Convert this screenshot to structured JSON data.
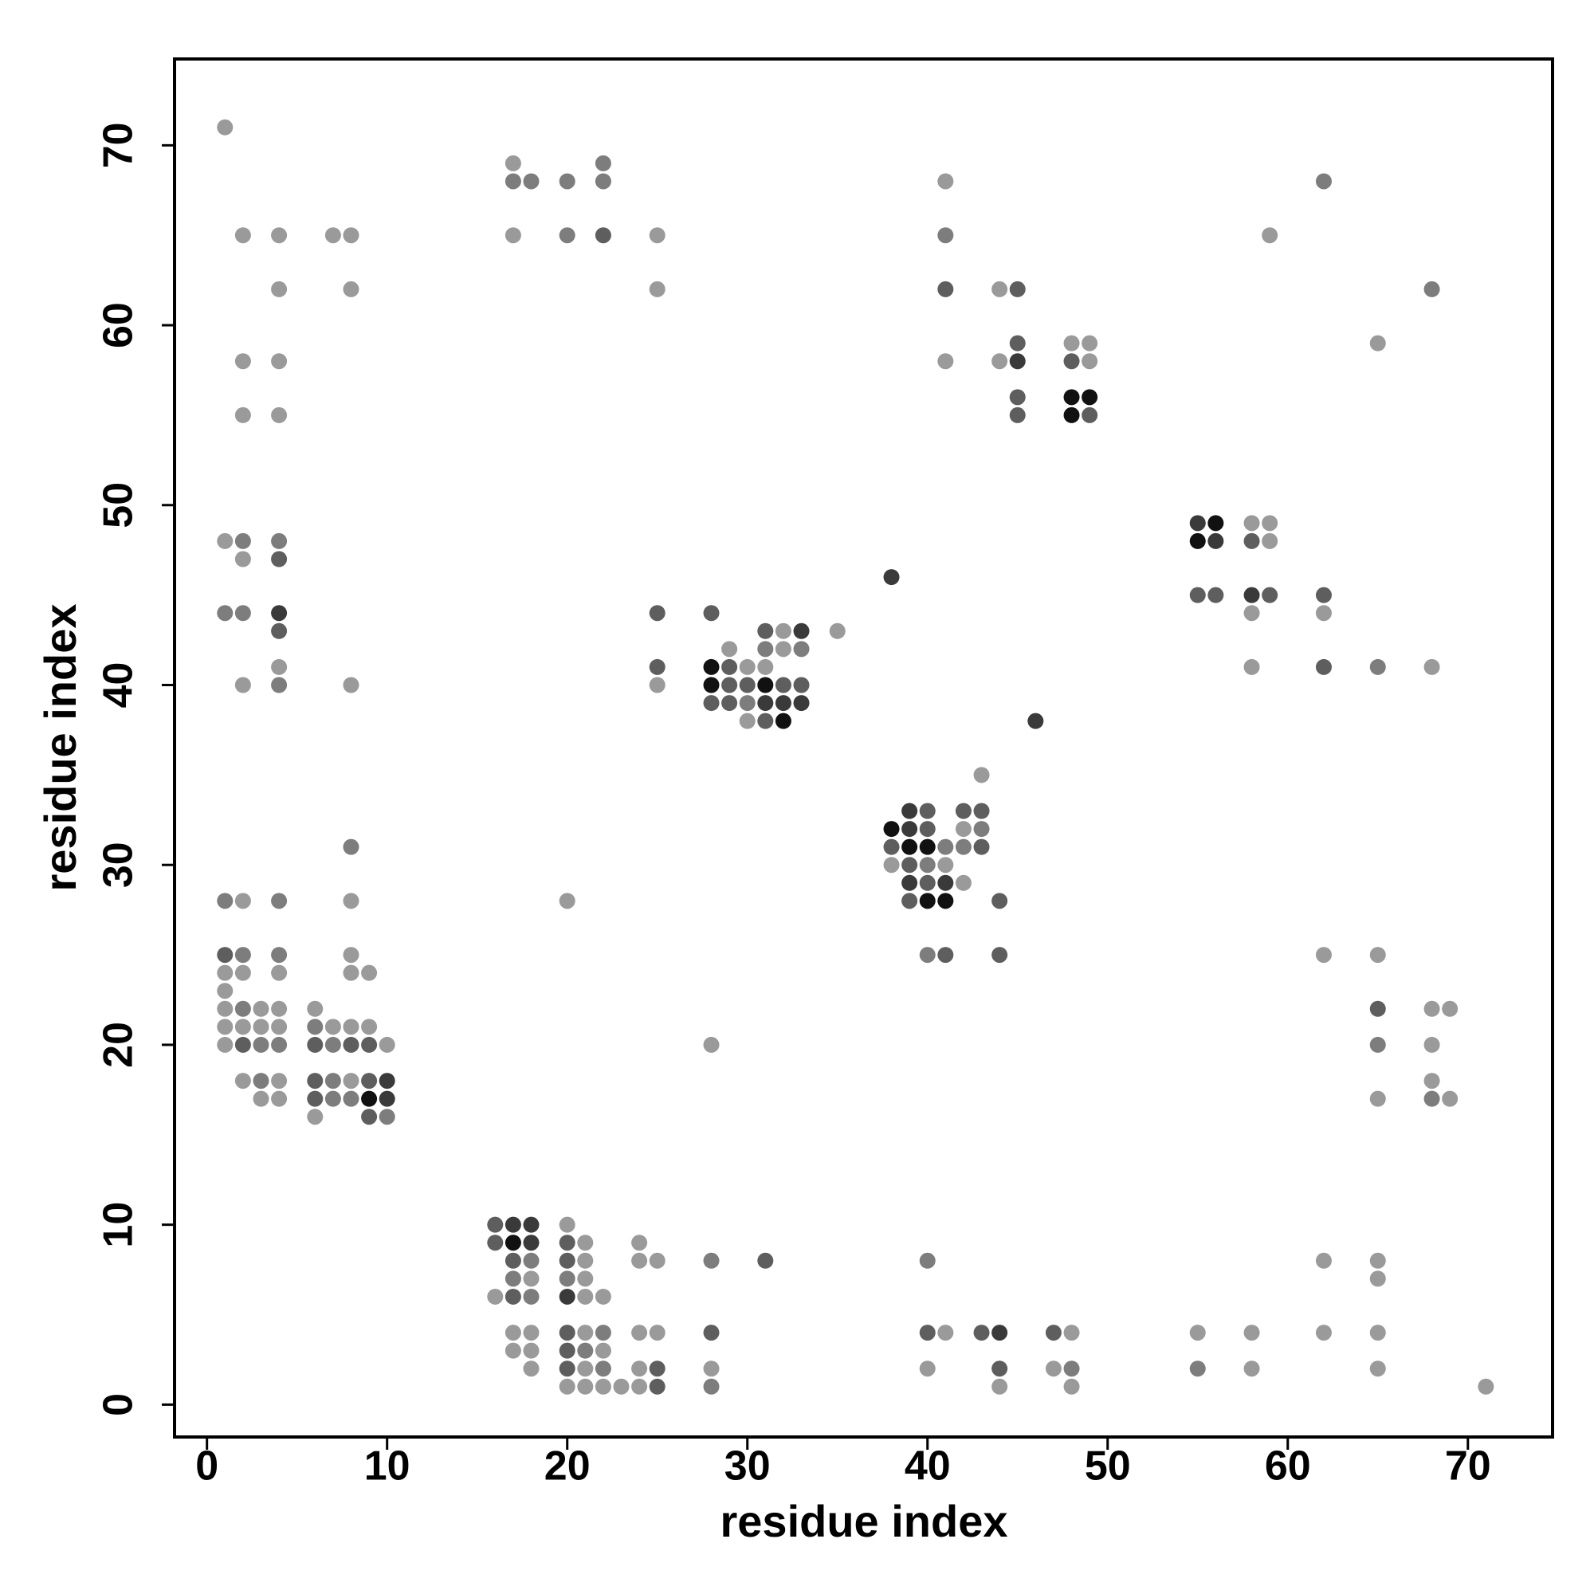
{
  "chart_data": {
    "type": "scatter",
    "xlabel": "residue index",
    "ylabel": "residue index",
    "xlim": [
      -1.8,
      74.7
    ],
    "ylim": [
      -1.8,
      74.8
    ],
    "xticks": [
      0,
      10,
      20,
      30,
      40,
      50,
      60,
      70
    ],
    "yticks": [
      0,
      10,
      20,
      30,
      40,
      50,
      60,
      70
    ],
    "grid": false,
    "series": [
      {
        "color": "#9a9a9a",
        "x": [
          1,
          2,
          4,
          7,
          8,
          4,
          8,
          2,
          4,
          2,
          4,
          1,
          2,
          4,
          2,
          8,
          2,
          8,
          8,
          1,
          2,
          4,
          8,
          9,
          1,
          1,
          3,
          4,
          6,
          1,
          2,
          3,
          4,
          7,
          8,
          9,
          1,
          10,
          2,
          4,
          8,
          3,
          4,
          6,
          17,
          17,
          25,
          25,
          25,
          29,
          32,
          35,
          32,
          30,
          31,
          30,
          20,
          28,
          41,
          41,
          44,
          48,
          49,
          44,
          49,
          59,
          65,
          58,
          59,
          59,
          58,
          62,
          58,
          68,
          43,
          42,
          38,
          41,
          42,
          62,
          65,
          68,
          69,
          68,
          68,
          65,
          69,
          20,
          21,
          24,
          21,
          24,
          25,
          62,
          65,
          18,
          21,
          65,
          16,
          21,
          22,
          17,
          18,
          21,
          24,
          25,
          41,
          48,
          55,
          58,
          62,
          65,
          17,
          18,
          22,
          18,
          21,
          24,
          28,
          40,
          47,
          58,
          65,
          20,
          21,
          22,
          23,
          24,
          44,
          48,
          71
        ],
        "values": [
          71,
          65,
          65,
          65,
          65,
          62,
          62,
          58,
          58,
          55,
          55,
          48,
          47,
          41,
          40,
          40,
          28,
          28,
          25,
          24,
          24,
          24,
          24,
          24,
          23,
          22,
          22,
          22,
          22,
          21,
          21,
          21,
          21,
          21,
          21,
          21,
          20,
          20,
          18,
          18,
          18,
          17,
          17,
          16,
          69,
          65,
          65,
          62,
          40,
          42,
          43,
          43,
          42,
          41,
          41,
          38,
          28,
          20,
          68,
          58,
          62,
          59,
          59,
          58,
          58,
          65,
          59,
          49,
          49,
          48,
          44,
          44,
          41,
          41,
          35,
          32,
          30,
          30,
          29,
          25,
          25,
          22,
          22,
          20,
          18,
          17,
          17,
          10,
          9,
          9,
          8,
          8,
          8,
          8,
          8,
          7,
          7,
          7,
          6,
          6,
          6,
          4,
          4,
          4,
          4,
          4,
          4,
          4,
          4,
          4,
          4,
          4,
          3,
          3,
          3,
          2,
          2,
          2,
          2,
          2,
          2,
          2,
          2,
          1,
          1,
          1,
          1,
          1,
          1,
          1,
          1
        ]
      },
      {
        "color": "#7d7d7d",
        "x": [
          2,
          4,
          1,
          2,
          4,
          8,
          1,
          4,
          2,
          4,
          2,
          6,
          3,
          4,
          7,
          3,
          7,
          7,
          8,
          10,
          22,
          17,
          18,
          20,
          22,
          20,
          31,
          33,
          30,
          41,
          62,
          68,
          65,
          43,
          41,
          42,
          40,
          40,
          65,
          68,
          18,
          28,
          40,
          17,
          20,
          18,
          22,
          21,
          22,
          48,
          55,
          28
        ],
        "values": [
          48,
          48,
          44,
          44,
          40,
          31,
          28,
          28,
          25,
          25,
          22,
          21,
          20,
          20,
          20,
          18,
          18,
          17,
          17,
          16,
          69,
          68,
          68,
          68,
          68,
          65,
          42,
          42,
          39,
          65,
          68,
          62,
          41,
          32,
          31,
          31,
          30,
          25,
          20,
          17,
          8,
          8,
          8,
          7,
          7,
          6,
          4,
          3,
          2,
          2,
          2,
          1
        ]
      },
      {
        "color": "#5e5e5e",
        "x": [
          4,
          4,
          1,
          2,
          6,
          8,
          9,
          6,
          9,
          6,
          9,
          22,
          25,
          25,
          28,
          31,
          29,
          29,
          30,
          32,
          33,
          28,
          29,
          31,
          41,
          45,
          45,
          48,
          45,
          45,
          49,
          58,
          55,
          56,
          59,
          62,
          62,
          40,
          42,
          43,
          40,
          38,
          43,
          39,
          40,
          39,
          44,
          41,
          44,
          65,
          16,
          16,
          20,
          17,
          20,
          31,
          17,
          20,
          28,
          40,
          43,
          47,
          20,
          20,
          25,
          44,
          25
        ],
        "values": [
          47,
          43,
          25,
          20,
          20,
          20,
          20,
          18,
          18,
          17,
          16,
          65,
          44,
          41,
          44,
          43,
          41,
          40,
          40,
          40,
          40,
          39,
          39,
          38,
          62,
          62,
          59,
          58,
          56,
          55,
          55,
          48,
          45,
          45,
          45,
          45,
          41,
          33,
          33,
          33,
          32,
          31,
          31,
          30,
          29,
          28,
          28,
          25,
          25,
          22,
          10,
          9,
          9,
          8,
          8,
          8,
          6,
          4,
          4,
          4,
          4,
          4,
          3,
          2,
          2,
          2,
          1
        ]
      },
      {
        "color": "#3a3a3a",
        "x": [
          4,
          10,
          10,
          33,
          31,
          32,
          33,
          38,
          46,
          45,
          55,
          56,
          58,
          39,
          39,
          39,
          41,
          17,
          18,
          18,
          20,
          44
        ],
        "values": [
          44,
          18,
          17,
          43,
          39,
          39,
          39,
          46,
          38,
          58,
          49,
          48,
          45,
          33,
          32,
          29,
          29,
          10,
          10,
          9,
          6,
          4
        ]
      },
      {
        "color": "#111111",
        "x": [
          28,
          28,
          31,
          32,
          9,
          38,
          39,
          40,
          40,
          41,
          48,
          49,
          48,
          56,
          55,
          17
        ],
        "values": [
          41,
          40,
          40,
          38,
          17,
          32,
          31,
          31,
          28,
          28,
          56,
          56,
          55,
          49,
          48,
          9
        ]
      }
    ]
  }
}
